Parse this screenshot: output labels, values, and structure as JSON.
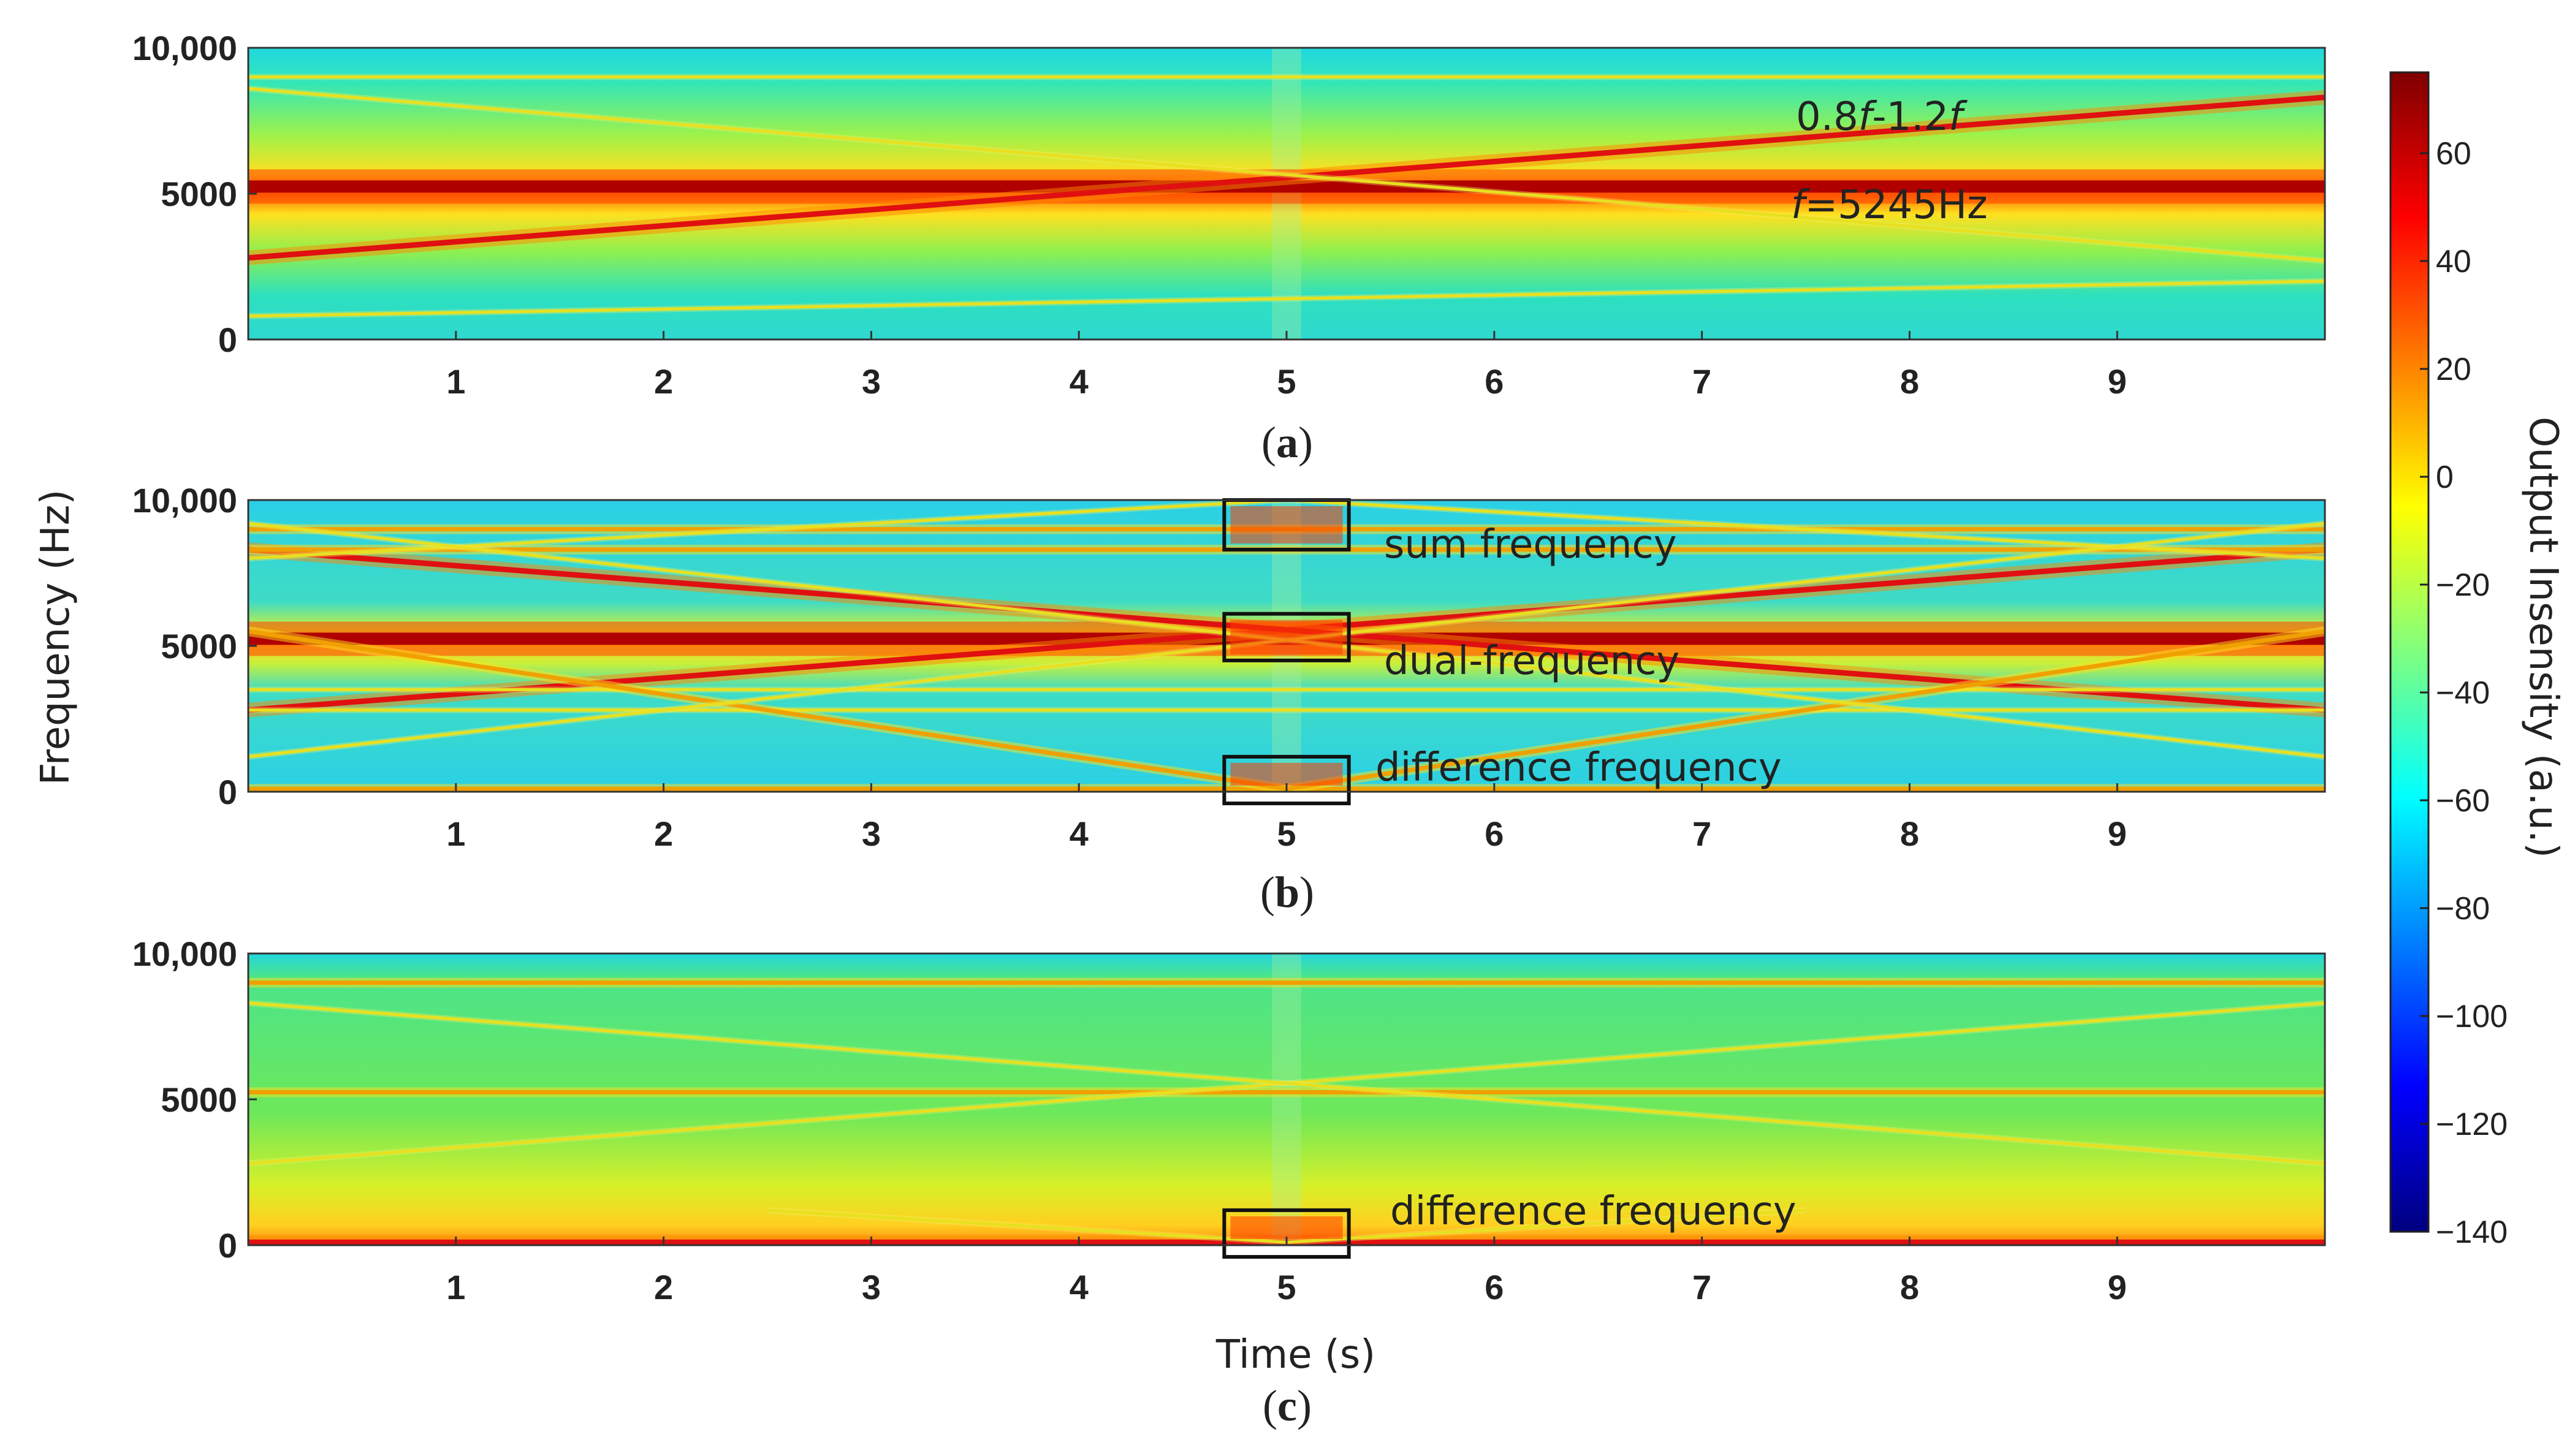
{
  "chart_data": {
    "type": "heatmap",
    "xlabel": "Time (s)",
    "ylabel": "Frequency (Hz)",
    "xlim": [
      0,
      10
    ],
    "ylim": [
      0,
      10000
    ],
    "x_ticks": [
      "1",
      "2",
      "3",
      "4",
      "5",
      "6",
      "7",
      "8",
      "9"
    ],
    "y_ticks": [
      "0",
      "5000",
      "10,000"
    ],
    "colorbar": {
      "label": "Output Insensity (a.u.)",
      "range": [
        -140,
        75
      ],
      "ticks": [
        "60",
        "40",
        "20",
        "0",
        "−20",
        "−40",
        "−60",
        "−80",
        "−100",
        "−120",
        "−140"
      ],
      "colors": [
        "#00007f",
        "#0000ff",
        "#007fff",
        "#00ffff",
        "#7fff7f",
        "#ffff00",
        "#ff7f00",
        "#ff0000",
        "#7f0000"
      ]
    },
    "panels": [
      {
        "id": "a",
        "caption_letter": "a",
        "background": "#3fe6a0",
        "lines": [
          {
            "t0": 0,
            "f0": 5245,
            "t1": 10,
            "f1": 5245,
            "kind": "main"
          },
          {
            "t0": 0,
            "f0": 2800,
            "t1": 10,
            "f1": 8300,
            "kind": "strong"
          },
          {
            "t0": 0,
            "f0": 8600,
            "t1": 10,
            "f1": 2700,
            "kind": "faint"
          },
          {
            "t0": 0,
            "f0": 9000,
            "t1": 10,
            "f1": 9000,
            "kind": "faint"
          },
          {
            "t0": 0,
            "f0": 800,
            "t1": 10,
            "f1": 2000,
            "kind": "faint"
          }
        ],
        "annotations": [
          {
            "prefix": "0.8",
            "italic1": "f",
            "middle": "-1.2",
            "italic2": "f",
            "suffix": ""
          },
          {
            "prefix": "",
            "italic1": "f",
            "middle": "=5245Hz",
            "italic2": "",
            "suffix": ""
          }
        ],
        "boxes": []
      },
      {
        "id": "b",
        "caption_letter": "b",
        "background": "#3cd2d8",
        "lines": [
          {
            "t0": 0,
            "f0": 5245,
            "t1": 10,
            "f1": 5245,
            "kind": "main"
          },
          {
            "t0": 0,
            "f0": 2800,
            "t1": 10,
            "f1": 8300,
            "kind": "strong"
          },
          {
            "t0": 0,
            "f0": 8300,
            "t1": 10,
            "f1": 2800,
            "kind": "strong"
          },
          {
            "t0": 0,
            "f0": 9000,
            "t1": 10,
            "f1": 9000,
            "kind": "medium"
          },
          {
            "t0": 0,
            "f0": 8300,
            "t1": 10,
            "f1": 8300,
            "kind": "medium"
          },
          {
            "t0": 0,
            "f0": 3500,
            "t1": 10,
            "f1": 3500,
            "kind": "faint"
          },
          {
            "t0": 0,
            "f0": 2800,
            "t1": 10,
            "f1": 2800,
            "kind": "faint"
          },
          {
            "t0": 0,
            "f0": 100,
            "t1": 10,
            "f1": 100,
            "kind": "medium"
          },
          {
            "t0": 0,
            "f0": 5500,
            "t1": 5,
            "f1": 100,
            "kind": "medium"
          },
          {
            "t0": 5,
            "f0": 100,
            "t1": 10,
            "f1": 5500,
            "kind": "medium"
          },
          {
            "t0": 0,
            "f0": 8000,
            "t1": 5,
            "f1": 10000,
            "kind": "faint"
          },
          {
            "t0": 5,
            "f0": 10000,
            "t1": 10,
            "f1": 8000,
            "kind": "faint"
          },
          {
            "t0": 0,
            "f0": 9200,
            "t1": 10,
            "f1": 1200,
            "kind": "faint"
          },
          {
            "t0": 0,
            "f0": 1200,
            "t1": 10,
            "f1": 9200,
            "kind": "faint"
          }
        ],
        "annotations": [
          {
            "prefix": "sum frequency",
            "italic1": "",
            "middle": "",
            "italic2": "",
            "suffix": ""
          },
          {
            "prefix": "dual-frequency",
            "italic1": "",
            "middle": "",
            "italic2": "",
            "suffix": ""
          },
          {
            "prefix": "difference frequency",
            "italic1": "",
            "middle": "",
            "italic2": "",
            "suffix": ""
          }
        ],
        "boxes": [
          {
            "t0": 4.7,
            "t1": 5.3,
            "f0": 8300,
            "f1": 10000
          },
          {
            "t0": 4.7,
            "t1": 5.3,
            "f0": 4500,
            "f1": 6100
          },
          {
            "t0": 4.7,
            "t1": 5.3,
            "f0": -400,
            "f1": 1200
          }
        ]
      },
      {
        "id": "c",
        "caption_letter": "c",
        "background": "#5be07a",
        "lines": [
          {
            "t0": 0,
            "f0": 5245,
            "t1": 10,
            "f1": 5245,
            "kind": "medium"
          },
          {
            "t0": 0,
            "f0": 9000,
            "t1": 10,
            "f1": 9000,
            "kind": "medium"
          },
          {
            "t0": 0,
            "f0": 2800,
            "t1": 10,
            "f1": 8300,
            "kind": "faint"
          },
          {
            "t0": 0,
            "f0": 8300,
            "t1": 10,
            "f1": 2800,
            "kind": "faint"
          },
          {
            "t0": 0,
            "f0": 100,
            "t1": 10,
            "f1": 100,
            "kind": "strong"
          },
          {
            "t0": 2.5,
            "f0": 1200,
            "t1": 5,
            "f1": 100,
            "kind": "faint"
          },
          {
            "t0": 5,
            "f0": 100,
            "t1": 7.5,
            "f1": 1200,
            "kind": "faint"
          }
        ],
        "annotations": [
          {
            "prefix": "difference frequency",
            "italic1": "",
            "middle": "",
            "italic2": "",
            "suffix": ""
          }
        ],
        "boxes": [
          {
            "t0": 4.7,
            "t1": 5.3,
            "f0": -400,
            "f1": 1200
          }
        ]
      }
    ]
  }
}
